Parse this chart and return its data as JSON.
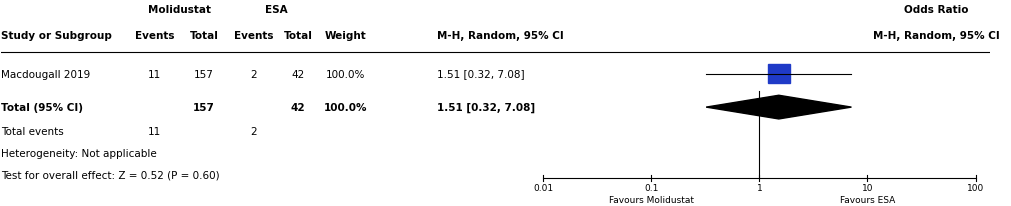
{
  "study": "Macdougall 2019",
  "mol_events": 11,
  "mol_total": 157,
  "esa_events": 2,
  "esa_total": 42,
  "weight": "100.0%",
  "or_text": "1.51 [0.32, 7.08]",
  "or_value": 1.51,
  "or_lower": 0.32,
  "or_upper": 7.08,
  "total_mol_total": 157,
  "total_esa_total": 42,
  "total_weight": "100.0%",
  "total_or_text": "1.51 [0.32, 7.08]",
  "total_events_mol": 11,
  "total_events_esa": 2,
  "heterogeneity_text": "Heterogeneity: Not applicable",
  "test_text": "Test for overall effect: Z = 0.52 (P = 0.60)",
  "header1_molidustat": "Molidustat",
  "header1_esa": "ESA",
  "header1_or_right": "Odds Ratio",
  "header2_study": "Study or Subgroup",
  "header2_events1": "Events",
  "header2_total1": "Total",
  "header2_events2": "Events",
  "header2_total2": "Total",
  "header2_weight": "Weight",
  "header2_ci_left": "M-H, Random, 95% CI",
  "header2_ci_right": "M-H, Random, 95% CI",
  "square_color": "#1f3ac7",
  "diamond_color": "#000000",
  "line_color": "#000000",
  "axis_ticks": [
    0.01,
    0.1,
    1,
    10,
    100
  ],
  "axis_tick_labels": [
    "0.01",
    "0.1",
    "1",
    "10",
    "100"
  ],
  "favours_left": "Favours Molidustat",
  "favours_right": "Favours ESA",
  "fig_width": 10.12,
  "fig_height": 2.07
}
